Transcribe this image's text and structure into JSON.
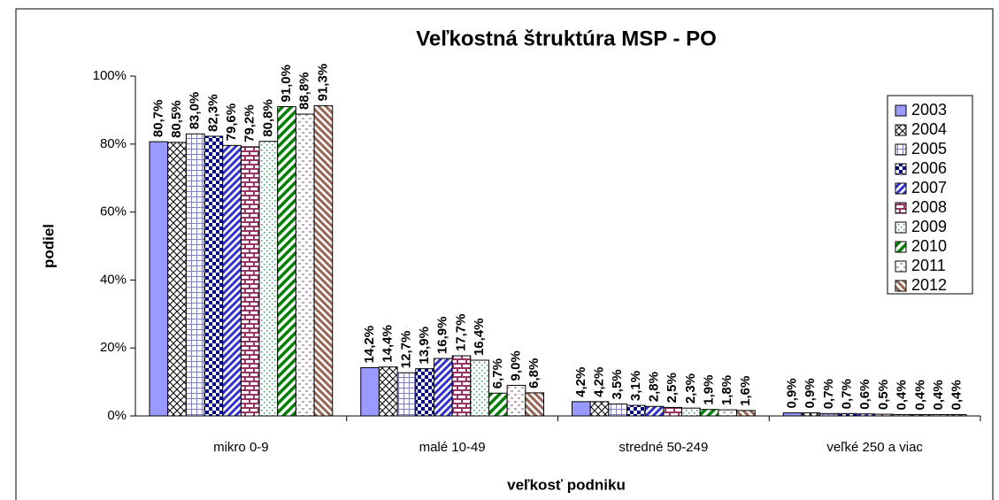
{
  "chart_data": {
    "type": "bar",
    "title": "Veľkostná štruktúra MSP - PO",
    "x_label": "veľkosť podniku",
    "y_label": "podiel",
    "categories": [
      "mikro 0-9",
      "malé 10-49",
      "stredné 50-249",
      "veľké 250 a viac"
    ],
    "ylim": [
      0,
      100
    ],
    "yticks": [
      {
        "value": 0,
        "label": "0%"
      },
      {
        "value": 20,
        "label": "20%"
      },
      {
        "value": 40,
        "label": "40%"
      },
      {
        "value": 60,
        "label": "60%"
      },
      {
        "value": 80,
        "label": "80%"
      },
      {
        "value": 100,
        "label": "100%"
      }
    ],
    "legend": "right",
    "series": [
      {
        "name": "2003",
        "color": "#9999ff",
        "values": [
          80.7,
          14.2,
          4.2,
          0.9
        ],
        "value_labels": [
          "80,7%",
          "14,2%",
          "4,2%",
          "0,9%"
        ]
      },
      {
        "name": "2004",
        "color": "#000000",
        "values": [
          80.5,
          14.4,
          4.2,
          0.9
        ],
        "value_labels": [
          "80,5%",
          "14,4%",
          "4,2%",
          "0,9%"
        ]
      },
      {
        "name": "2005",
        "color": "#8080c0",
        "values": [
          83.0,
          12.7,
          3.5,
          0.7
        ],
        "value_labels": [
          "83,0%",
          "12,7%",
          "3,5%",
          "0,7%"
        ]
      },
      {
        "name": "2006",
        "color": "#000080",
        "values": [
          82.3,
          13.9,
          3.1,
          0.7
        ],
        "value_labels": [
          "82,3%",
          "13,9%",
          "3,1%",
          "0,7%"
        ]
      },
      {
        "name": "2007",
        "color": "#3333cc",
        "values": [
          79.6,
          16.9,
          2.8,
          0.6
        ],
        "value_labels": [
          "79,6%",
          "16,9%",
          "2,8%",
          "0,6%"
        ]
      },
      {
        "name": "2008",
        "color": "#993366",
        "values": [
          79.2,
          17.7,
          2.5,
          0.5
        ],
        "value_labels": [
          "79,2%",
          "17,7%",
          "2,5%",
          "0,5%"
        ]
      },
      {
        "name": "2009",
        "color": "#339966",
        "values": [
          80.8,
          16.4,
          2.3,
          0.4
        ],
        "value_labels": [
          "80,8%",
          "16,4%",
          "2,3%",
          "0,4%"
        ]
      },
      {
        "name": "2010",
        "color": "#008000",
        "values": [
          91.0,
          6.7,
          1.9,
          0.4
        ],
        "value_labels": [
          "91,0%",
          "6,7%",
          "1,9%",
          "0,4%"
        ]
      },
      {
        "name": "2011",
        "color": "#cc99cc",
        "values": [
          88.8,
          9.0,
          1.8,
          0.4
        ],
        "value_labels": [
          "88,8%",
          "9,0%",
          "1,8%",
          "0,4%"
        ]
      },
      {
        "name": "2012",
        "color": "#996655",
        "values": [
          91.3,
          6.8,
          1.6,
          0.4
        ],
        "value_labels": [
          "91,3%",
          "6,8%",
          "1,6%",
          "0,4%"
        ]
      }
    ]
  }
}
